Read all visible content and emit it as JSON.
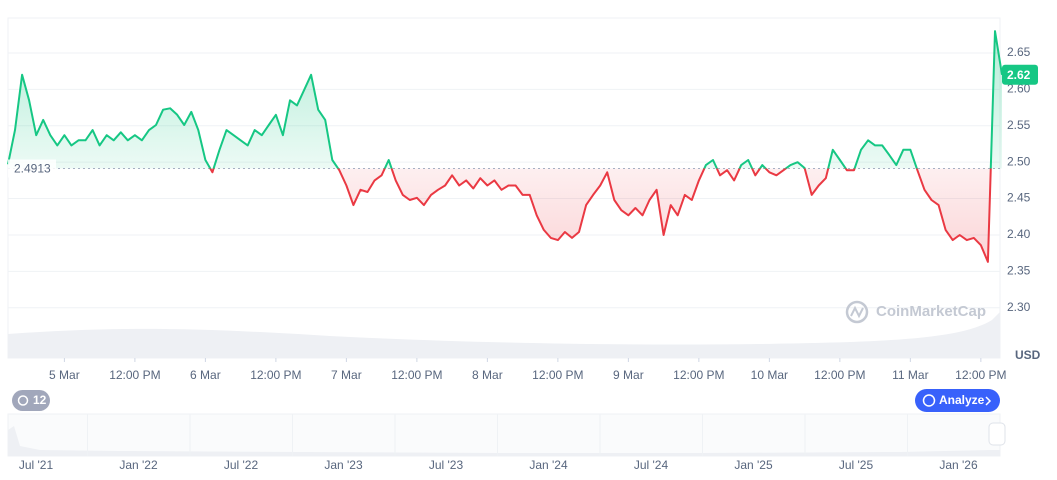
{
  "chart_data": {
    "type": "line",
    "values": [
      2.497,
      2.544,
      2.62,
      2.585,
      2.537,
      2.558,
      2.537,
      2.523,
      2.537,
      2.523,
      2.53,
      2.53,
      2.544,
      2.523,
      2.537,
      2.53,
      2.541,
      2.53,
      2.537,
      2.53,
      2.544,
      2.551,
      2.572,
      2.574,
      2.565,
      2.551,
      2.569,
      2.544,
      2.503,
      2.486,
      2.517,
      2.544,
      2.537,
      2.53,
      2.523,
      2.544,
      2.537,
      2.551,
      2.565,
      2.537,
      2.585,
      2.578,
      2.599,
      2.62,
      2.572,
      2.558,
      2.503,
      2.489,
      2.468,
      2.441,
      2.462,
      2.459,
      2.475,
      2.482,
      2.503,
      2.475,
      2.455,
      2.448,
      2.451,
      2.441,
      2.455,
      2.462,
      2.468,
      2.482,
      2.468,
      2.475,
      2.464,
      2.478,
      2.468,
      2.475,
      2.462,
      2.468,
      2.468,
      2.455,
      2.455,
      2.427,
      2.407,
      2.396,
      2.393,
      2.404,
      2.396,
      2.404,
      2.441,
      2.455,
      2.468,
      2.486,
      2.448,
      2.434,
      2.427,
      2.437,
      2.427,
      2.448,
      2.462,
      2.4,
      2.441,
      2.427,
      2.455,
      2.448,
      2.475,
      2.496,
      2.503,
      2.482,
      2.489,
      2.475,
      2.496,
      2.503,
      2.482,
      2.496,
      2.486,
      2.482,
      2.489,
      2.496,
      2.5,
      2.492,
      2.455,
      2.468,
      2.478,
      2.517,
      2.503,
      2.489,
      2.489,
      2.517,
      2.53,
      2.523,
      2.523,
      2.51,
      2.496,
      2.517,
      2.517,
      2.489,
      2.462,
      2.448,
      2.441,
      2.407,
      2.393,
      2.4,
      2.393,
      2.396,
      2.386,
      2.363,
      2.68,
      2.62
    ],
    "baseline": 2.4913,
    "current_price": 2.62,
    "color_above": "#16c784",
    "color_below": "#ea3943",
    "xlim": [
      0,
      141
    ],
    "xticks": [
      {
        "value": 8,
        "label": "5 Mar"
      },
      {
        "value": 18,
        "label": "12:00 PM"
      },
      {
        "value": 28,
        "label": "6 Mar"
      },
      {
        "value": 38,
        "label": "12:00 PM"
      },
      {
        "value": 48,
        "label": "7 Mar"
      },
      {
        "value": 58,
        "label": "12:00 PM"
      },
      {
        "value": 68,
        "label": "8 Mar"
      },
      {
        "value": 78,
        "label": "12:00 PM"
      },
      {
        "value": 88,
        "label": "9 Mar"
      },
      {
        "value": 98,
        "label": "12:00 PM"
      },
      {
        "value": 108,
        "label": "10 Mar"
      },
      {
        "value": 118,
        "label": "12:00 PM"
      },
      {
        "value": 128,
        "label": "11 Mar"
      },
      {
        "value": 138,
        "label": "12:00 PM"
      }
    ],
    "ylim": [
      2.231,
      2.698
    ],
    "yticks": [
      {
        "value": 2.3,
        "label": "2.30"
      },
      2.35,
      {
        "value": 2.4,
        "label": "2.40"
      },
      2.45,
      {
        "value": 2.5,
        "label": "2.50"
      },
      2.55,
      {
        "value": 2.6,
        "label": "2.60"
      },
      2.65
    ],
    "y_unit": "USD",
    "grid": true,
    "watermark": "CoinMarketCap",
    "history_badge": "12",
    "analyze_button": "Analyze",
    "navigator_labels": [
      "Jul '21",
      "Jan '22",
      "Jul '22",
      "Jan '23",
      "Jul '23",
      "Jan '24",
      "Jul '24",
      "Jan '25",
      "Jul '25",
      "Jan '26"
    ]
  }
}
